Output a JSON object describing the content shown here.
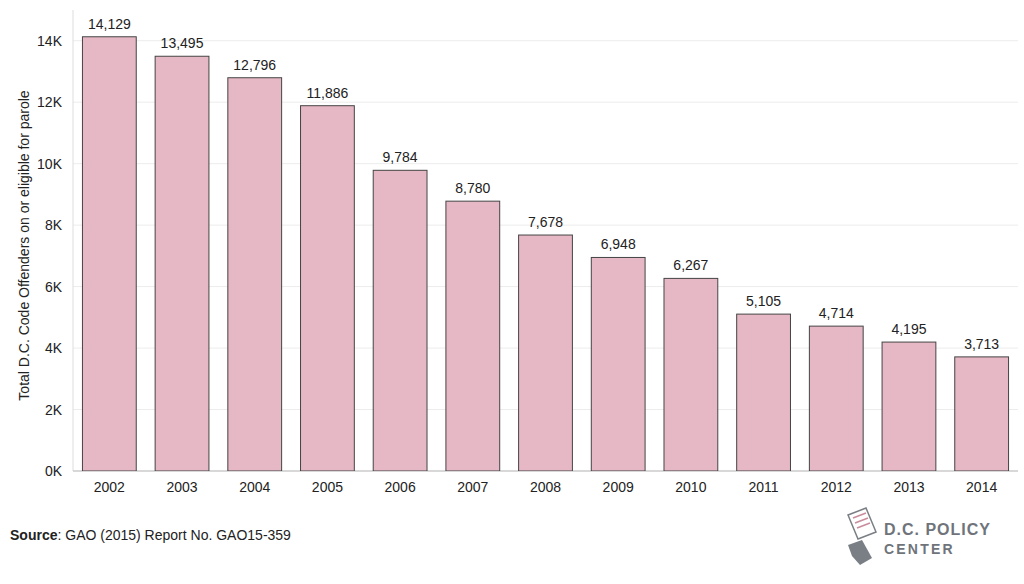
{
  "chart_data": {
    "type": "bar",
    "y_label": "Total D.C. Code Offenders on or eligible for parole",
    "categories": [
      "2002",
      "2003",
      "2004",
      "2005",
      "2006",
      "2007",
      "2008",
      "2009",
      "2010",
      "2011",
      "2012",
      "2013",
      "2014"
    ],
    "values": [
      14129,
      13495,
      12796,
      11886,
      9784,
      8780,
      7678,
      6948,
      6267,
      5105,
      4714,
      4195,
      3713
    ],
    "value_labels": [
      "14,129",
      "13,495",
      "12,796",
      "11,886",
      "9,784",
      "8,780",
      "7,678",
      "6,948",
      "6,267",
      "5,105",
      "4,714",
      "4,195",
      "3,713"
    ],
    "color": "#e6b8c5",
    "ylim": [
      0,
      15000
    ],
    "yticks": [
      {
        "value": 0,
        "label": "0K"
      },
      {
        "value": 2000,
        "label": "2K"
      },
      {
        "value": 4000,
        "label": "4K"
      },
      {
        "value": 6000,
        "label": "6K"
      },
      {
        "value": 8000,
        "label": "8K"
      },
      {
        "value": 10000,
        "label": "10K"
      },
      {
        "value": 12000,
        "label": "12K"
      },
      {
        "value": 14000,
        "label": "14K"
      }
    ],
    "grid": true,
    "data_labels": true,
    "source_label": "Source",
    "source": ": GAO (2015) Report No. GAO15-359",
    "logo": [
      "D.C. POLICY",
      "CENTER"
    ]
  }
}
